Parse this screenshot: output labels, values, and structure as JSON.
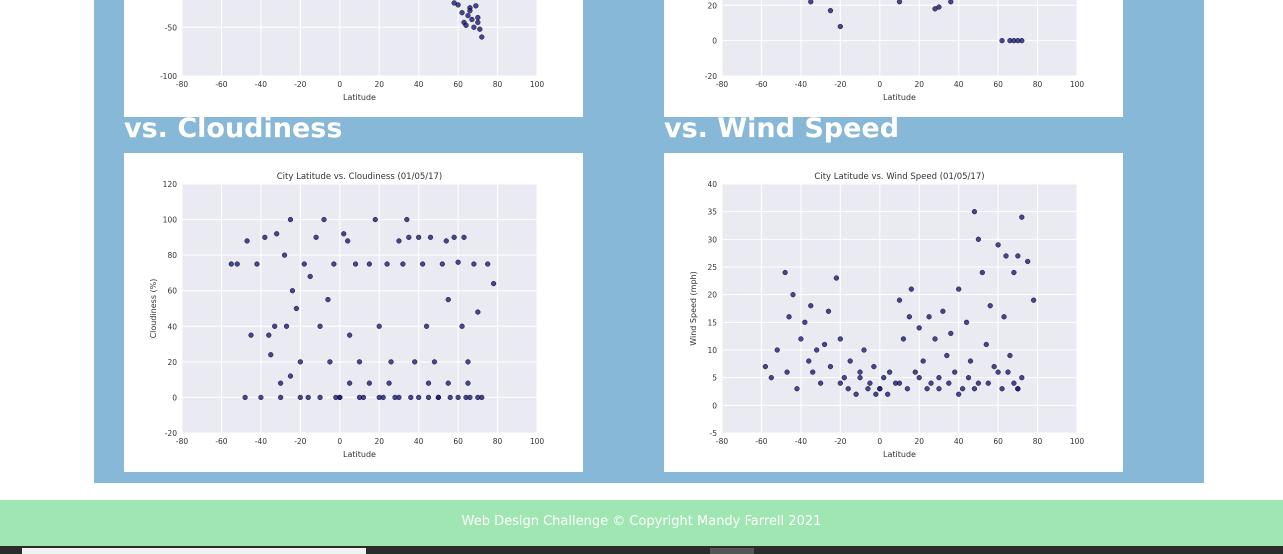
{
  "chart_data": [
    {
      "type": "scatter",
      "xlabel": "Latitude",
      "color": "#1a1a80",
      "xlim": [
        -80,
        100
      ],
      "xticks": [
        -80,
        -60,
        -40,
        -20,
        0,
        20,
        40,
        60,
        80,
        100
      ],
      "ylim": [
        -100,
        -22
      ],
      "yticks": [
        -100,
        -50
      ],
      "grid": true,
      "x": [
        58,
        60,
        62,
        63,
        64,
        65,
        66,
        67,
        68,
        69,
        70,
        71,
        72,
        70,
        66
      ],
      "values": [
        -25,
        -27,
        -35,
        -45,
        -48,
        -38,
        -30,
        -42,
        -50,
        -28,
        -45,
        -52,
        -60,
        -40,
        -33
      ]
    },
    {
      "type": "scatter",
      "xlabel": "Latitude",
      "color": "#1a1a80",
      "xlim": [
        -80,
        100
      ],
      "xticks": [
        -80,
        -60,
        -40,
        -20,
        0,
        20,
        40,
        60,
        80,
        100
      ],
      "ylim": [
        -20,
        23
      ],
      "yticks": [
        -20,
        0,
        20
      ],
      "grid": true,
      "x": [
        -35,
        -25,
        -20,
        10,
        28,
        30,
        36,
        62,
        66,
        68,
        70,
        72
      ],
      "values": [
        22,
        17,
        8,
        22,
        18,
        19,
        22,
        0,
        0,
        0,
        0,
        0
      ]
    },
    {
      "type": "scatter",
      "title": "City Latitude vs. Cloudiness (01/05/17)",
      "xlabel": "Latitude",
      "ylabel": "Cloudiness (%)",
      "color": "#1a1a80",
      "xlim": [
        -80,
        100
      ],
      "xticks": [
        -80,
        -60,
        -40,
        -20,
        0,
        20,
        40,
        60,
        80,
        100
      ],
      "ylim": [
        -20,
        120
      ],
      "yticks": [
        -20,
        0,
        20,
        40,
        60,
        80,
        100,
        120
      ],
      "grid": true,
      "x": [
        -55,
        -52,
        -48,
        -47,
        -45,
        -42,
        -40,
        -38,
        -35,
        -33,
        -32,
        -30,
        -28,
        -27,
        -25,
        -24,
        -22,
        -20,
        -18,
        -16,
        -15,
        -12,
        -10,
        -8,
        -5,
        -3,
        -2,
        0,
        2,
        4,
        5,
        8,
        10,
        12,
        15,
        18,
        20,
        22,
        24,
        26,
        28,
        30,
        32,
        34,
        35,
        36,
        38,
        40,
        42,
        44,
        45,
        46,
        48,
        50,
        52,
        54,
        55,
        56,
        58,
        60,
        62,
        63,
        64,
        65,
        66,
        68,
        70,
        72,
        75,
        78,
        -20,
        -10,
        0,
        10,
        20,
        30,
        40,
        50,
        60,
        70,
        -30,
        -25,
        5,
        15,
        25,
        45,
        55,
        65,
        -36,
        -6
      ],
      "values": [
        75,
        75,
        0,
        88,
        35,
        75,
        0,
        90,
        24,
        40,
        92,
        0,
        80,
        40,
        100,
        60,
        50,
        20,
        75,
        0,
        68,
        90,
        40,
        100,
        20,
        75,
        0,
        0,
        92,
        88,
        35,
        75,
        20,
        0,
        75,
        100,
        40,
        0,
        75,
        20,
        0,
        88,
        75,
        100,
        90,
        0,
        20,
        90,
        75,
        40,
        0,
        90,
        20,
        0,
        75,
        88,
        55,
        0,
        90,
        76,
        40,
        90,
        0,
        20,
        0,
        75,
        48,
        0,
        75,
        64,
        0,
        0,
        0,
        0,
        0,
        0,
        0,
        0,
        0,
        0,
        8,
        12,
        8,
        8,
        8,
        8,
        8,
        8,
        35,
        55
      ]
    },
    {
      "type": "scatter",
      "title": "City Latitude vs. Wind Speed (01/05/17)",
      "xlabel": "Latitude",
      "ylabel": "Wind Speed (mph)",
      "color": "#1a1a80",
      "xlim": [
        -80,
        100
      ],
      "xticks": [
        -80,
        -60,
        -40,
        -20,
        0,
        20,
        40,
        60,
        80,
        100
      ],
      "ylim": [
        -5,
        40
      ],
      "yticks": [
        -5,
        0,
        5,
        10,
        15,
        20,
        25,
        30,
        35,
        40
      ],
      "grid": true,
      "x": [
        -58,
        -55,
        -52,
        -48,
        -47,
        -46,
        -44,
        -42,
        -40,
        -38,
        -36,
        -35,
        -34,
        -32,
        -30,
        -28,
        -26,
        -25,
        -22,
        -20,
        -18,
        -16,
        -15,
        -12,
        -10,
        -8,
        -6,
        -5,
        -3,
        -2,
        0,
        2,
        4,
        5,
        8,
        10,
        12,
        14,
        15,
        16,
        18,
        20,
        22,
        24,
        25,
        26,
        28,
        30,
        32,
        34,
        35,
        36,
        38,
        40,
        42,
        44,
        45,
        46,
        48,
        50,
        52,
        54,
        55,
        56,
        58,
        60,
        62,
        63,
        64,
        65,
        66,
        68,
        68,
        70,
        70,
        72,
        72,
        75,
        78,
        48,
        -20,
        -10,
        0,
        10,
        20,
        30,
        40,
        50,
        60,
        70
      ],
      "values": [
        7,
        5,
        10,
        24,
        6,
        16,
        20,
        3,
        12,
        15,
        8,
        18,
        6,
        10,
        4,
        11,
        17,
        7,
        23,
        12,
        5,
        3,
        8,
        2,
        6,
        10,
        3,
        4,
        7,
        2,
        3,
        5,
        2,
        6,
        4,
        19,
        12,
        3,
        16,
        21,
        6,
        14,
        8,
        3,
        16,
        4,
        12,
        5,
        17,
        9,
        4,
        13,
        6,
        21,
        3,
        15,
        5,
        8,
        35,
        30,
        24,
        11,
        4,
        18,
        7,
        29,
        3,
        16,
        27,
        6,
        9,
        4,
        24,
        27,
        3,
        34,
        5,
        26,
        19,
        3,
        4,
        5,
        3,
        4,
        5,
        3,
        2,
        4,
        6,
        3
      ]
    }
  ],
  "headings": [
    "vs. Cloudiness",
    "vs. Wind Speed"
  ],
  "footer": "Web Design Challenge © Copyright Mandy Farrell 2021"
}
